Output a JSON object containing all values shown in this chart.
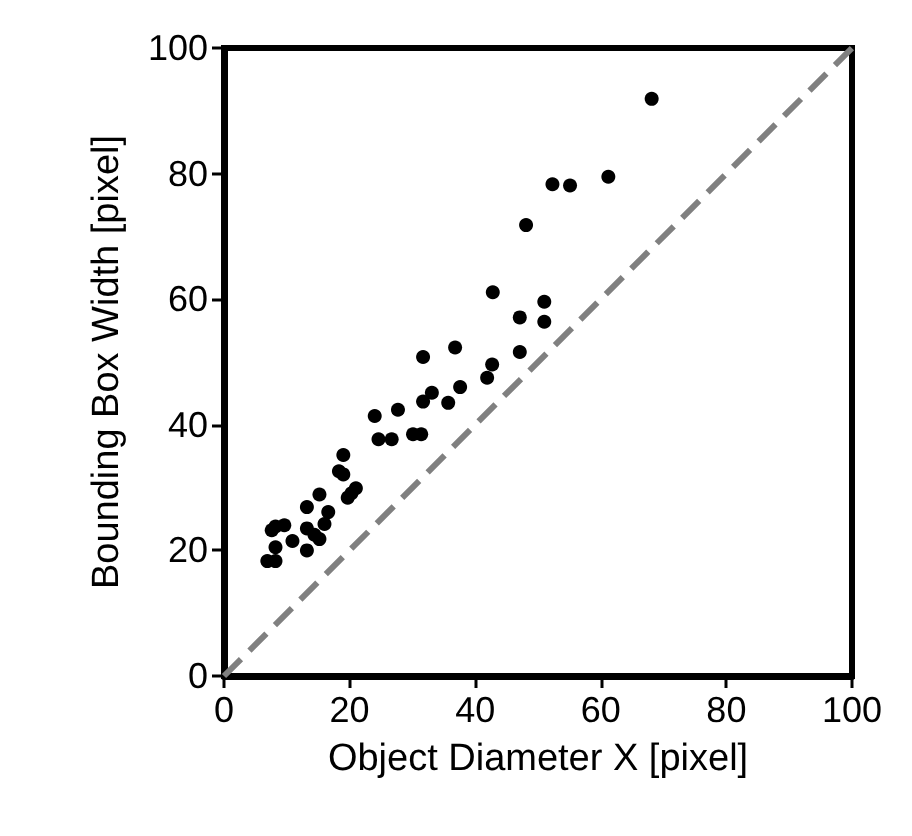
{
  "chart_data": {
    "type": "scatter",
    "xlabel": "Object Diameter X [pixel]",
    "ylabel": "Bounding Box Width [pixel]",
    "xlim": [
      0,
      100
    ],
    "xticks": [
      0,
      20,
      40,
      60,
      80,
      100
    ],
    "ylim": [
      0,
      100
    ],
    "yticks": [
      0,
      20,
      40,
      60,
      80,
      100
    ],
    "grid": false,
    "series": [
      {
        "color": "#000000",
        "marker": "circle",
        "x": [
          6.9,
          8.2,
          8.2,
          7.6,
          8.2,
          9.6,
          10.9,
          13.2,
          13.2,
          13.2,
          14.4,
          15.2,
          16.0,
          16.6,
          15.2,
          18.3,
          19.0,
          19.0,
          19.7,
          20.3,
          21.0,
          24.0,
          24.6,
          26.7,
          27.7,
          30.1,
          31.4,
          31.7,
          31.7,
          33.1,
          35.7,
          36.8,
          37.6,
          41.9,
          42.7,
          42.8,
          47.1,
          47.1,
          48.1,
          51.0,
          51.0,
          52.3,
          55.1,
          61.2,
          68.1
        ],
        "values": [
          18.3,
          18.3,
          20.5,
          23.2,
          23.8,
          24.0,
          21.5,
          20.0,
          23.5,
          26.9,
          22.5,
          21.8,
          24.2,
          26.1,
          28.9,
          32.6,
          32.1,
          35.2,
          28.4,
          29.1,
          29.9,
          41.4,
          37.7,
          37.7,
          42.4,
          38.5,
          38.5,
          50.8,
          43.7,
          45.1,
          43.5,
          52.3,
          46.0,
          47.5,
          49.6,
          61.1,
          51.6,
          57.1,
          71.8,
          56.4,
          59.6,
          78.3,
          78.1,
          79.5,
          91.9
        ]
      },
      {
        "type": "line",
        "color": "#808080",
        "marker": "none",
        "line_style": "dashed",
        "x": [
          0,
          100
        ],
        "values": [
          0,
          100
        ]
      }
    ]
  }
}
